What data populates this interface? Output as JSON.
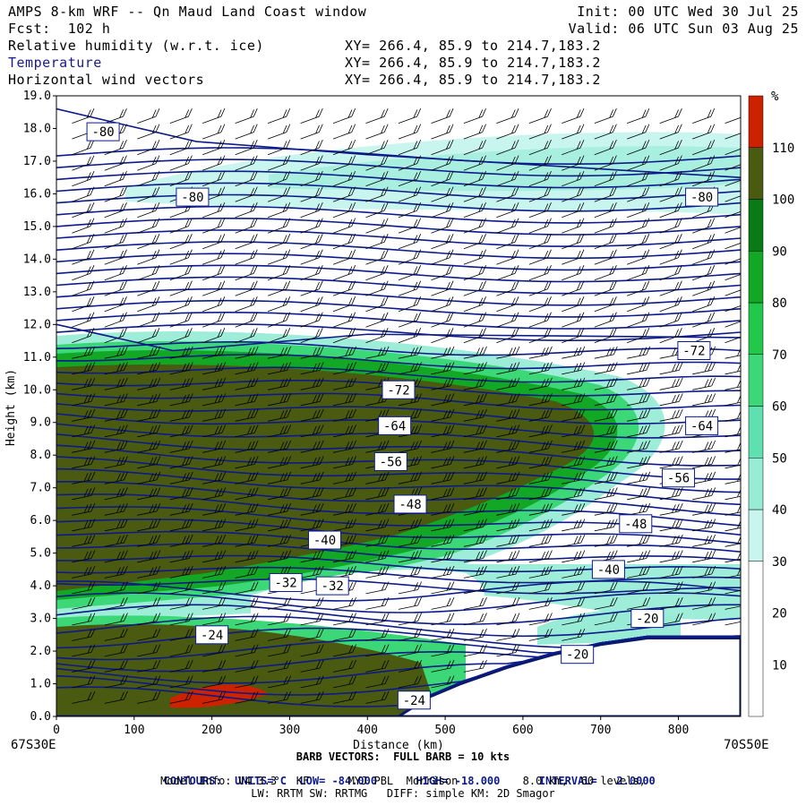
{
  "header": {
    "title": "AMPS 8-km WRF -- Qn Maud Land Coast window",
    "init": "Init: 00 UTC Wed 30 Jul 25",
    "fcst": "Fcst:  102 h",
    "valid": "Valid: 06 UTC Sun 03 Aug 25",
    "fields": [
      {
        "name": "Relative humidity (w.r.t. ice)",
        "xy": "XY= 266.4, 85.9 to 214.7,183.2"
      },
      {
        "name": "Temperature",
        "xy": "XY= 266.4, 85.9 to 214.7,183.2"
      },
      {
        "name": "Horizontal wind vectors",
        "xy": "XY= 266.4, 85.9 to 214.7,183.2"
      }
    ]
  },
  "chart_data": {
    "type": "heatmap",
    "xlabel": "Distance (km)",
    "ylabel": "Height (km)",
    "xlim": [
      0,
      880
    ],
    "ylim": [
      0,
      19
    ],
    "x_ticks": [
      0,
      100,
      200,
      300,
      400,
      500,
      600,
      700,
      800
    ],
    "y_ticks": [
      "0.0",
      "1.0",
      "2.0",
      "3.0",
      "4.0",
      "5.0",
      "6.0",
      "7.0",
      "8.0",
      "9.0",
      "10.0",
      "11.0",
      "12.0",
      "13.0",
      "14.0",
      "15.0",
      "16.0",
      "17.0",
      "18.0",
      "19.0"
    ],
    "x_left_label": "67S30E",
    "x_right_label": "70S50E",
    "colorbar": {
      "unit": "%",
      "ticks": [
        10,
        20,
        30,
        40,
        50,
        60,
        70,
        80,
        90,
        100,
        110
      ],
      "bands": [
        {
          "min": 0,
          "max": 30,
          "color": "#ffffff"
        },
        {
          "min": 30,
          "max": 40,
          "color": "#c8f5ee"
        },
        {
          "min": 40,
          "max": 50,
          "color": "#98ecd6"
        },
        {
          "min": 50,
          "max": 60,
          "color": "#5fe0b0"
        },
        {
          "min": 60,
          "max": 70,
          "color": "#3cd878"
        },
        {
          "min": 70,
          "max": 80,
          "color": "#22c84a"
        },
        {
          "min": 80,
          "max": 90,
          "color": "#12a826"
        },
        {
          "min": 90,
          "max": 100,
          "color": "#0a7a16"
        },
        {
          "min": 100,
          "max": 110,
          "color": "#4a5a10"
        },
        {
          "min": 110,
          "max": 120,
          "color": "#cc2200"
        }
      ]
    },
    "contour_labels": [
      {
        "text": "-80",
        "x": 60,
        "y": 17.9
      },
      {
        "text": "-80",
        "x": 175,
        "y": 15.9
      },
      {
        "text": "-80",
        "x": 830,
        "y": 15.9
      },
      {
        "text": "-72",
        "x": 440,
        "y": 10.0
      },
      {
        "text": "-72",
        "x": 820,
        "y": 11.2
      },
      {
        "text": "-64",
        "x": 435,
        "y": 8.9
      },
      {
        "text": "-64",
        "x": 830,
        "y": 8.9
      },
      {
        "text": "-56",
        "x": 430,
        "y": 7.8
      },
      {
        "text": "-56",
        "x": 800,
        "y": 7.3
      },
      {
        "text": "-48",
        "x": 455,
        "y": 6.5
      },
      {
        "text": "-48",
        "x": 745,
        "y": 5.9
      },
      {
        "text": "-40",
        "x": 345,
        "y": 5.4
      },
      {
        "text": "-40",
        "x": 710,
        "y": 4.5
      },
      {
        "text": "-32",
        "x": 295,
        "y": 4.1
      },
      {
        "text": "-32",
        "x": 355,
        "y": 4.0
      },
      {
        "text": "-24",
        "x": 200,
        "y": 2.5
      },
      {
        "text": "-24",
        "x": 460,
        "y": 0.5
      },
      {
        "text": "-20",
        "x": 670,
        "y": 1.9
      },
      {
        "text": "-20",
        "x": 760,
        "y": 3.0
      }
    ],
    "terrain_km": [
      [
        0,
        0
      ],
      [
        440,
        0
      ],
      [
        480,
        0.6
      ],
      [
        520,
        1.0
      ],
      [
        580,
        1.5
      ],
      [
        640,
        1.9
      ],
      [
        700,
        2.2
      ],
      [
        760,
        2.4
      ],
      [
        880,
        2.4
      ]
    ],
    "barb_legend": "BARB VECTORS:  FULL BARB = 10 kts"
  },
  "footer": {
    "contours_label": "CONTOURS:",
    "contours_units": "UNITS=°C",
    "low": "LOW= -84.000",
    "high": "HIGH= -18.000",
    "interval": "INTERVAL=   2.0000",
    "model_info": "Model Info: V4.3.3   KF      MYJ PBL  Morrison          8.0 km,  60 levels,",
    "model_info2": "LW: RRTM SW: RRTMG   DIFF: simple KM: 2D Smagor"
  }
}
